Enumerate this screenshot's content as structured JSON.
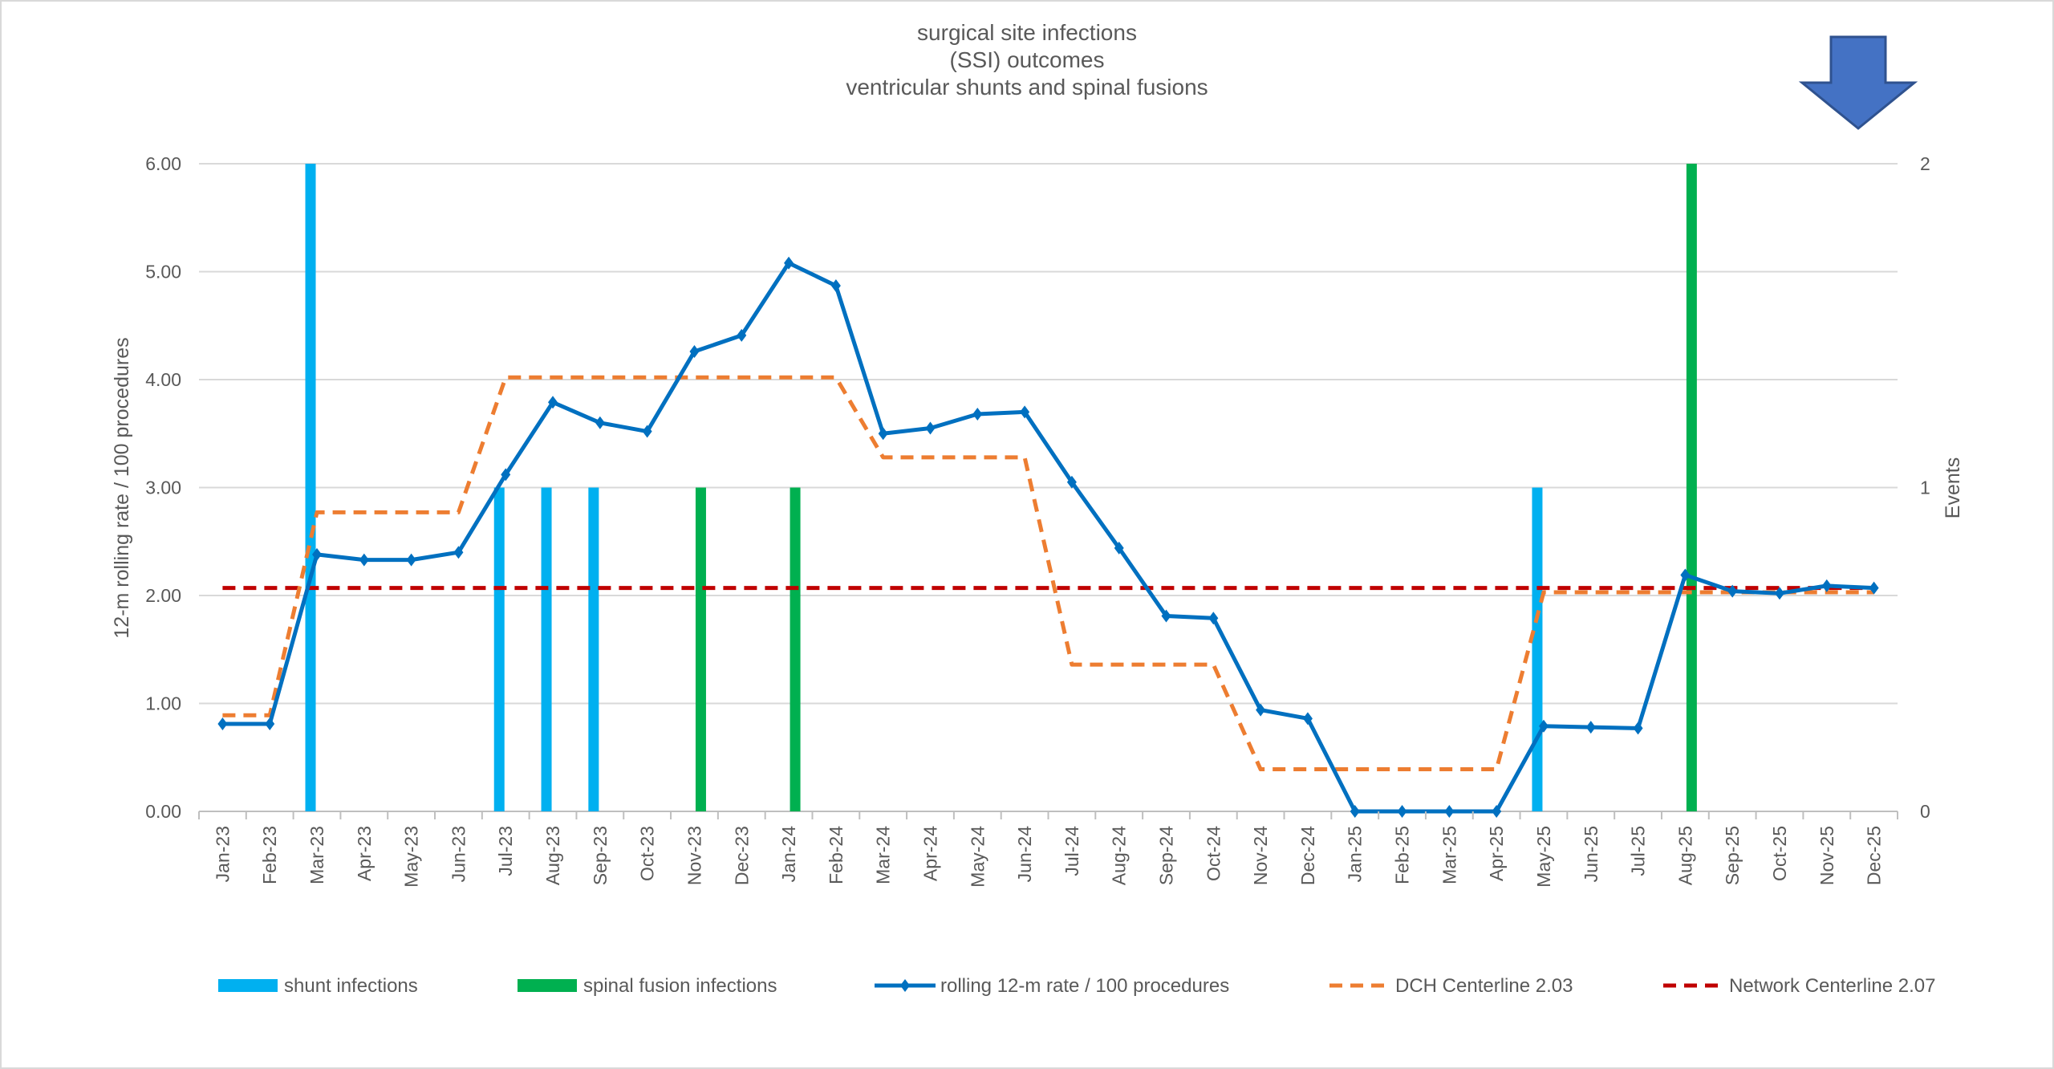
{
  "chart_data": {
    "type": "bar+line",
    "title": [
      "surgical site infections",
      "(SSI) outcomes",
      "ventricular shunts and spinal fusions"
    ],
    "ylabel": "12-m rolling rate / 100 procedures",
    "y2label": "Events",
    "ylim": [
      0,
      6
    ],
    "yticks": [
      "0.00",
      "1.00",
      "2.00",
      "3.00",
      "4.00",
      "5.00",
      "6.00"
    ],
    "y2lim": [
      0,
      2
    ],
    "y2ticks": [
      "0",
      "1",
      "2"
    ],
    "grid": true,
    "legend_position": "bottom",
    "categories": [
      "Jan-23",
      "Feb-23",
      "Mar-23",
      "Apr-23",
      "May-23",
      "Jun-23",
      "Jul-23",
      "Aug-23",
      "Sep-23",
      "Oct-23",
      "Nov-23",
      "Dec-23",
      "Jan-24",
      "Feb-24",
      "Mar-24",
      "Apr-24",
      "May-24",
      "Jun-24",
      "Jul-24",
      "Aug-24",
      "Sep-24",
      "Oct-24",
      "Nov-24",
      "Dec-24",
      "Jan-25",
      "Feb-25",
      "Mar-25",
      "Apr-25",
      "May-25",
      "Jun-25",
      "Jul-25",
      "Aug-25",
      "Sep-25",
      "Oct-25",
      "Nov-25",
      "Dec-25"
    ],
    "series": [
      {
        "name": "shunt infections",
        "kind": "bar",
        "axis": "right",
        "color": "#00B0F0",
        "values": [
          0,
          0,
          2,
          0,
          0,
          0,
          1,
          1,
          1,
          0,
          0,
          0,
          0,
          0,
          0,
          0,
          0,
          0,
          0,
          0,
          0,
          0,
          0,
          0,
          0,
          0,
          0,
          0,
          1,
          0,
          0,
          0,
          0,
          0,
          0,
          0
        ]
      },
      {
        "name": "spinal fusion infections",
        "kind": "bar",
        "axis": "right",
        "color": "#00B050",
        "values": [
          0,
          0,
          0,
          0,
          0,
          0,
          0,
          0,
          0,
          0,
          1,
          0,
          1,
          0,
          0,
          0,
          0,
          0,
          0,
          0,
          0,
          0,
          0,
          0,
          0,
          0,
          0,
          0,
          0,
          0,
          0,
          2,
          0,
          0,
          0,
          0
        ]
      },
      {
        "name": "rolling 12-m rate / 100 procedures",
        "kind": "line-marker",
        "axis": "left",
        "color": "#0070C0",
        "values": [
          0.81,
          0.81,
          2.38,
          2.33,
          2.33,
          2.4,
          3.12,
          3.79,
          3.6,
          3.52,
          4.26,
          4.41,
          5.08,
          4.87,
          3.5,
          3.55,
          3.68,
          3.7,
          3.05,
          2.44,
          1.81,
          1.79,
          0.94,
          0.86,
          0,
          0,
          0,
          0,
          0.79,
          0.78,
          0.77,
          2.19,
          2.04,
          2.02,
          2.09,
          2.07
        ]
      },
      {
        "name": "DCH Centerline 2.03",
        "kind": "dashed",
        "axis": "left",
        "color": "#ED7D31",
        "values": [
          0.89,
          0.89,
          2.77,
          2.77,
          2.77,
          2.77,
          4.02,
          4.02,
          4.02,
          4.02,
          4.02,
          4.02,
          4.02,
          4.02,
          3.28,
          3.28,
          3.28,
          3.28,
          1.36,
          1.36,
          1.36,
          1.36,
          0.39,
          0.39,
          0.39,
          0.39,
          0.39,
          0.39,
          2.03,
          2.03,
          2.03,
          2.03,
          2.03,
          2.03,
          2.03,
          2.03
        ]
      },
      {
        "name": "Network Centerline 2.07",
        "kind": "dashed",
        "axis": "left",
        "color": "#C00000",
        "values": [
          2.07,
          2.07,
          2.07,
          2.07,
          2.07,
          2.07,
          2.07,
          2.07,
          2.07,
          2.07,
          2.07,
          2.07,
          2.07,
          2.07,
          2.07,
          2.07,
          2.07,
          2.07,
          2.07,
          2.07,
          2.07,
          2.07,
          2.07,
          2.07,
          2.07,
          2.07,
          2.07,
          2.07,
          2.07,
          2.07,
          2.07,
          2.07,
          2.07,
          2.07,
          2.07,
          2.07
        ]
      }
    ]
  },
  "decorations": {
    "arrow_icon": "down-arrow-icon",
    "arrow_color": "#4472C4"
  }
}
